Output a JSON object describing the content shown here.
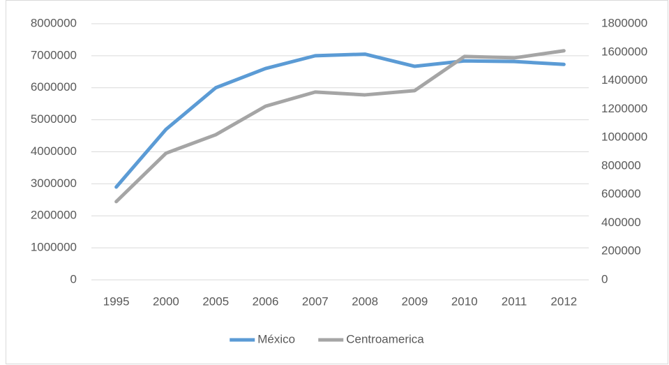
{
  "chart_data": {
    "type": "line",
    "categories": [
      "1995",
      "2000",
      "2005",
      "2006",
      "2007",
      "2008",
      "2009",
      "2010",
      "2011",
      "2012"
    ],
    "series": [
      {
        "name": "México",
        "color": "#5b9bd5",
        "values": [
          2900000,
          4700000,
          6000000,
          6600000,
          7000000,
          7050000,
          6670000,
          6840000,
          6820000,
          6730000
        ]
      },
      {
        "name": "Centroamerica",
        "color": "#a5a5a5",
        "axis": "y2",
        "values": [
          550000,
          890000,
          1020000,
          1220000,
          1320000,
          1300000,
          1330000,
          1570000,
          1560000,
          1610000
        ]
      }
    ],
    "ylim": [
      0,
      8000000
    ],
    "yticks": [
      0,
      1000000,
      2000000,
      3000000,
      4000000,
      5000000,
      6000000,
      7000000,
      8000000
    ],
    "y2lim": [
      0,
      1800000
    ],
    "y2ticks": [
      0,
      200000,
      400000,
      600000,
      800000,
      1000000,
      1200000,
      1400000,
      1600000,
      1800000
    ],
    "grid": true,
    "legend": "bottom"
  }
}
